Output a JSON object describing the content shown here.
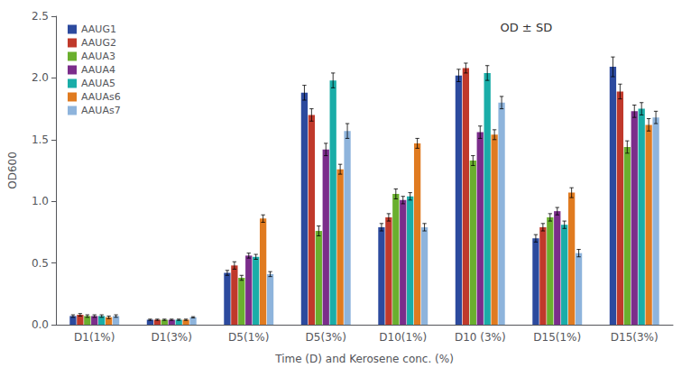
{
  "chart_data": {
    "type": "bar",
    "categories": [
      "D1(1%)",
      "D1(3%)",
      "D5(1%)",
      "D5(3%)",
      "D10(1%)",
      "D10 (3%)",
      "D15(1%)",
      "D15(3%)"
    ],
    "series": [
      {
        "name": "AAUG1",
        "color": "#2C4A9E",
        "values": [
          0.07,
          0.04,
          0.42,
          1.88,
          0.79,
          2.02,
          0.7,
          2.09
        ],
        "errors": [
          0.01,
          0.005,
          0.02,
          0.06,
          0.03,
          0.05,
          0.03,
          0.08
        ]
      },
      {
        "name": "AAUG2",
        "color": "#C0392B",
        "values": [
          0.08,
          0.04,
          0.48,
          1.7,
          0.87,
          2.08,
          0.79,
          1.89
        ],
        "errors": [
          0.01,
          0.005,
          0.03,
          0.05,
          0.03,
          0.04,
          0.03,
          0.06
        ]
      },
      {
        "name": "AAUA3",
        "color": "#6AAF2E",
        "values": [
          0.07,
          0.04,
          0.38,
          0.76,
          1.06,
          1.33,
          0.87,
          1.44
        ],
        "errors": [
          0.01,
          0.005,
          0.02,
          0.04,
          0.04,
          0.04,
          0.03,
          0.05
        ]
      },
      {
        "name": "AAUA4",
        "color": "#7B2D8B",
        "values": [
          0.07,
          0.04,
          0.56,
          1.42,
          1.01,
          1.56,
          0.92,
          1.73
        ],
        "errors": [
          0.01,
          0.005,
          0.02,
          0.05,
          0.03,
          0.05,
          0.03,
          0.05
        ]
      },
      {
        "name": "AAUA5",
        "color": "#1AADA8",
        "values": [
          0.07,
          0.04,
          0.55,
          1.98,
          1.04,
          2.04,
          0.81,
          1.75
        ],
        "errors": [
          0.01,
          0.005,
          0.02,
          0.06,
          0.03,
          0.06,
          0.03,
          0.05
        ]
      },
      {
        "name": "AAUAs6",
        "color": "#E07B20",
        "values": [
          0.06,
          0.04,
          0.86,
          1.26,
          1.47,
          1.54,
          1.07,
          1.62
        ],
        "errors": [
          0.01,
          0.005,
          0.03,
          0.04,
          0.04,
          0.04,
          0.04,
          0.05
        ]
      },
      {
        "name": "AAUAs7",
        "color": "#8EB4DC",
        "values": [
          0.07,
          0.06,
          0.41,
          1.57,
          0.79,
          1.8,
          0.58,
          1.68
        ],
        "errors": [
          0.01,
          0.005,
          0.02,
          0.06,
          0.03,
          0.05,
          0.03,
          0.05
        ]
      }
    ],
    "ylabel": "OD600",
    "xlabel": "Time (D) and Kerosene conc. (%)",
    "ylim": [
      0,
      2.5
    ],
    "yticks": [
      {
        "value": 0,
        "label": "0.0"
      },
      0.5,
      {
        "value": 1,
        "label": "1.0"
      },
      1.5,
      {
        "value": 2,
        "label": "2.0"
      },
      2.5
    ],
    "annotation": "OD ± SD",
    "legend": "upper left",
    "grid": false
  }
}
